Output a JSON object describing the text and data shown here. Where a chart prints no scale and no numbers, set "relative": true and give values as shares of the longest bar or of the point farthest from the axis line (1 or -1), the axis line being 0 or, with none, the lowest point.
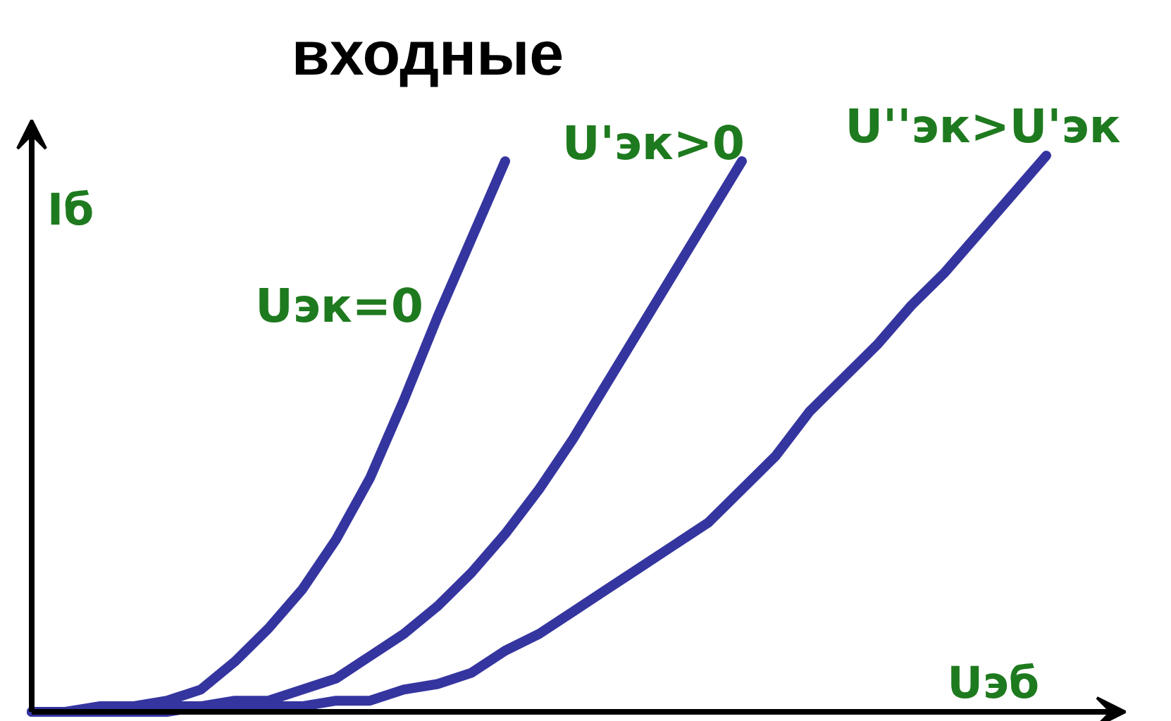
{
  "chart_data": {
    "type": "line",
    "title": "входные",
    "xlabel": "Uэб",
    "ylabel": "Iб",
    "relative": true,
    "tick_labels": false,
    "categories": [
      null,
      null,
      null,
      null,
      null,
      null,
      null,
      null,
      null,
      null,
      null,
      null,
      null,
      null,
      null,
      null,
      null,
      null,
      null,
      null,
      null,
      null,
      null,
      null,
      null,
      null,
      null,
      null,
      null,
      null,
      null
    ],
    "series": [
      {
        "name": "Uэк=0",
        "color": "#3535a0",
        "values": [
          0,
          0,
          0.01,
          0.01,
          0.02,
          0.04,
          0.09,
          0.15,
          0.22,
          0.31,
          0.42,
          0.56,
          0.71,
          0.85,
          0.99,
          null,
          null,
          null,
          null,
          null,
          null,
          null,
          null,
          null,
          null,
          null,
          null,
          null,
          null,
          null,
          null
        ]
      },
      {
        "name": "U'эк>0",
        "color": "#3535a0",
        "values": [
          0,
          0,
          0,
          0.01,
          0.01,
          0.01,
          0.02,
          0.02,
          0.04,
          0.06,
          0.1,
          0.14,
          0.19,
          0.25,
          0.32,
          0.4,
          0.49,
          0.59,
          0.69,
          0.79,
          0.89,
          0.99,
          null,
          null,
          null,
          null,
          null,
          null,
          null,
          null,
          null
        ]
      },
      {
        "name": "U''эк>U'эк",
        "color": "#3535a0",
        "values": [
          0,
          0,
          0,
          0,
          0,
          0.01,
          0.01,
          0.01,
          0.01,
          0.02,
          0.02,
          0.04,
          0.05,
          0.07,
          0.11,
          0.14,
          0.18,
          0.22,
          0.26,
          0.3,
          0.34,
          0.4,
          0.46,
          0.54,
          0.6,
          0.66,
          0.73,
          0.79,
          0.86,
          0.93,
          1.0
        ]
      }
    ]
  }
}
